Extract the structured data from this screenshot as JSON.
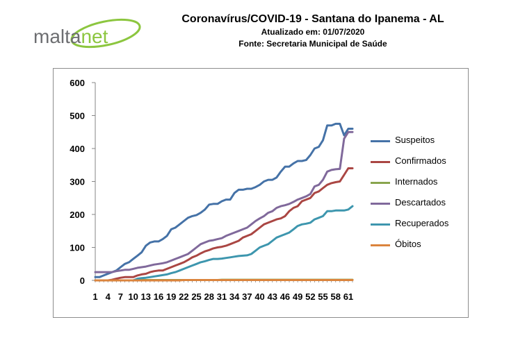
{
  "header": {
    "title": "Coronavírus/COVID-19 - Santana do Ipanema - AL",
    "updated": "Atualizado em: 01/07/2020",
    "source": "Fonte: Secretaria Municipal de Saúde"
  },
  "logo": {
    "text_part1": "malta",
    "text_part2": "net",
    "colors": {
      "text": "#6d6e71",
      "accent": "#8cc63f"
    }
  },
  "chart_data": {
    "type": "line",
    "title": "",
    "xlabel": "",
    "ylabel": "",
    "ylim": [
      0,
      600
    ],
    "yticks": [
      0,
      100,
      200,
      300,
      400,
      500,
      600
    ],
    "x": [
      1,
      2,
      3,
      4,
      5,
      6,
      7,
      8,
      9,
      10,
      11,
      12,
      13,
      14,
      15,
      16,
      17,
      18,
      19,
      20,
      21,
      22,
      23,
      24,
      25,
      26,
      27,
      28,
      29,
      30,
      31,
      32,
      33,
      34,
      35,
      36,
      37,
      38,
      39,
      40,
      41,
      42,
      43,
      44,
      45,
      46,
      47,
      48,
      49,
      50,
      51,
      52,
      53,
      54,
      55,
      56,
      57,
      58,
      59,
      60,
      61,
      62
    ],
    "xtick_labels": [
      "1",
      "4",
      "7",
      "10",
      "13",
      "16",
      "19",
      "22",
      "25",
      "28",
      "31",
      "34",
      "37",
      "40",
      "43",
      "46",
      "49",
      "52",
      "55",
      "58",
      "61"
    ],
    "grid": false,
    "legend_position": "right",
    "series": [
      {
        "name": "Suspeitos",
        "color": "#4572a7",
        "values": [
          10,
          10,
          15,
          20,
          25,
          30,
          40,
          50,
          55,
          65,
          75,
          85,
          105,
          115,
          118,
          118,
          125,
          135,
          155,
          160,
          170,
          180,
          190,
          195,
          198,
          205,
          215,
          230,
          232,
          232,
          240,
          245,
          245,
          265,
          275,
          275,
          278,
          278,
          283,
          290,
          300,
          305,
          305,
          312,
          330,
          345,
          345,
          355,
          362,
          362,
          365,
          380,
          400,
          405,
          425,
          470,
          470,
          475,
          475,
          440,
          460,
          460
        ]
      },
      {
        "name": "Confirmados",
        "color": "#aa4643",
        "values": [
          0,
          0,
          0,
          0,
          2,
          5,
          8,
          10,
          10,
          10,
          15,
          18,
          20,
          25,
          28,
          30,
          30,
          35,
          40,
          45,
          50,
          55,
          62,
          70,
          75,
          82,
          88,
          92,
          97,
          100,
          102,
          105,
          110,
          115,
          120,
          130,
          135,
          140,
          150,
          160,
          170,
          175,
          180,
          185,
          188,
          195,
          210,
          220,
          225,
          240,
          245,
          250,
          265,
          270,
          280,
          290,
          295,
          298,
          300,
          320,
          340,
          340
        ]
      },
      {
        "name": "Internados",
        "color": "#89a54e",
        "values": [
          0,
          0,
          0,
          0,
          0,
          0,
          0,
          0,
          0,
          0,
          1,
          1,
          1,
          1,
          1,
          1,
          1,
          1,
          1,
          1,
          1,
          1,
          1,
          1,
          1,
          1,
          1,
          1,
          1,
          1,
          2,
          2,
          2,
          2,
          2,
          2,
          2,
          2,
          2,
          2,
          2,
          2,
          2,
          2,
          2,
          2,
          2,
          2,
          2,
          2,
          2,
          2,
          2,
          2,
          2,
          2,
          2,
          2,
          2,
          2,
          2,
          2
        ]
      },
      {
        "name": "Descartados",
        "color": "#80699b",
        "values": [
          25,
          25,
          25,
          25,
          25,
          28,
          30,
          32,
          32,
          35,
          38,
          40,
          42,
          45,
          48,
          50,
          52,
          55,
          60,
          65,
          70,
          75,
          80,
          90,
          100,
          110,
          115,
          120,
          122,
          125,
          128,
          135,
          140,
          145,
          150,
          155,
          160,
          170,
          180,
          188,
          195,
          205,
          210,
          220,
          225,
          228,
          232,
          238,
          245,
          250,
          255,
          262,
          285,
          290,
          305,
          330,
          335,
          337,
          338,
          430,
          450,
          450
        ]
      },
      {
        "name": "Recuperados",
        "color": "#3d96ae",
        "values": [
          0,
          0,
          0,
          0,
          0,
          0,
          0,
          0,
          0,
          0,
          5,
          7,
          8,
          10,
          12,
          14,
          16,
          18,
          22,
          25,
          30,
          35,
          40,
          45,
          50,
          55,
          58,
          62,
          65,
          65,
          66,
          68,
          70,
          72,
          74,
          75,
          76,
          80,
          90,
          100,
          105,
          110,
          120,
          130,
          135,
          140,
          145,
          155,
          165,
          170,
          172,
          175,
          185,
          190,
          195,
          210,
          210,
          212,
          212,
          212,
          215,
          225
        ]
      },
      {
        "name": "Óbitos",
        "color": "#db843d",
        "values": [
          0,
          0,
          0,
          0,
          0,
          0,
          0,
          0,
          0,
          0,
          0,
          0,
          0,
          0,
          0,
          0,
          0,
          0,
          0,
          0,
          0,
          1,
          1,
          1,
          1,
          1,
          1,
          1,
          1,
          1,
          1,
          1,
          1,
          1,
          1,
          1,
          1,
          1,
          1,
          1,
          1,
          1,
          1,
          1,
          1,
          1,
          1,
          1,
          1,
          1,
          1,
          1,
          1,
          1,
          1,
          1,
          1,
          1,
          1,
          1,
          1,
          1
        ]
      }
    ]
  }
}
